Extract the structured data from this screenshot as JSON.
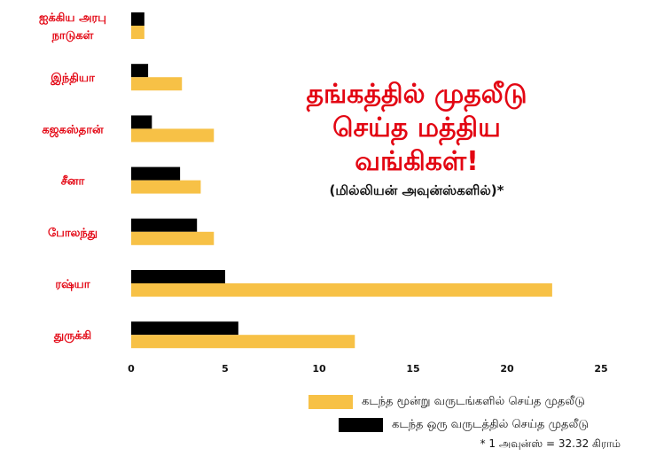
{
  "chart_data": {
    "type": "bar",
    "orientation": "horizontal",
    "title_lines": [
      "தங்கத்தில் முதலீடு",
      "செய்த மத்திய",
      "வங்கிகள்!"
    ],
    "subtitle": "(மில்லியன் அவுன்ஸ்களில்)*",
    "categories": [
      "ஐக்கிய அரபு நாடுகள்",
      "இந்தியா",
      "கஜகஸ்தான்",
      "சீனா",
      "போலந்து",
      "ரஷ்யா",
      "துருக்கி"
    ],
    "series": [
      {
        "name": "கடந்த ஒரு வருடத்தில் செய்த முதலீடு",
        "color": "#000000",
        "values": [
          0.7,
          0.9,
          1.1,
          2.6,
          3.5,
          5.0,
          5.7
        ]
      },
      {
        "name": "கடந்த மூன்று வருடங்களில் செய்த முதலீடு",
        "color": "#f7c146",
        "values": [
          0.7,
          2.7,
          4.4,
          3.7,
          4.4,
          22.4,
          11.9
        ]
      }
    ],
    "xlim": [
      0,
      25
    ],
    "xticks": [
      "0",
      "5",
      "10",
      "15",
      "20",
      "25"
    ],
    "grid": false,
    "legend_position": "bottom-right",
    "footnote": "* 1 அவுன்ஸ் = 32.32 கிராம்"
  }
}
